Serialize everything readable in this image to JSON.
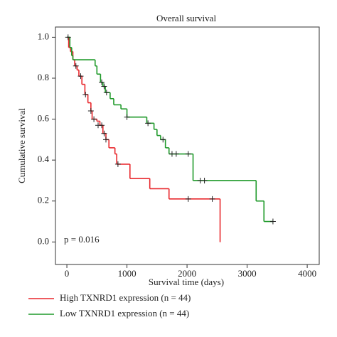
{
  "chart_data": {
    "type": "survival",
    "title": "Overall survival",
    "x_label": "Survival time (days)",
    "y_label": "Cumulative survival",
    "annotation": "p = 0.016",
    "xlim": [
      -190,
      4200
    ],
    "ylim": [
      -0.11,
      1.05
    ],
    "xticks": [
      0,
      1000,
      2000,
      3000,
      4000
    ],
    "yticks": [
      {
        "value": 0,
        "label": "0.0"
      },
      {
        "value": 0.2,
        "label": "0.2"
      },
      {
        "value": 0.4,
        "label": "0.4"
      },
      {
        "value": 0.6,
        "label": "0.6"
      },
      {
        "value": 0.8,
        "label": "0.8"
      },
      {
        "value": 1,
        "label": "1.0"
      }
    ],
    "series": [
      {
        "name": "High TXNRD1 expression (n = 44)",
        "color": "#e8262b",
        "x": [
          0,
          30,
          60,
          100,
          130,
          170,
          200,
          250,
          300,
          350,
          400,
          420,
          500,
          550,
          600,
          650,
          700,
          800,
          830,
          1050,
          1380,
          1700,
          2550
        ],
        "values": [
          1.0,
          0.95,
          0.93,
          0.89,
          0.86,
          0.84,
          0.81,
          0.77,
          0.72,
          0.68,
          0.64,
          0.6,
          0.59,
          0.57,
          0.53,
          0.5,
          0.46,
          0.43,
          0.38,
          0.31,
          0.26,
          0.21,
          0.0
        ],
        "censor_x": [
          150,
          230,
          310,
          400,
          450,
          520,
          580,
          620,
          650,
          850,
          2020,
          2420
        ],
        "censor_values": [
          0.86,
          0.81,
          0.72,
          0.64,
          0.6,
          0.57,
          0.57,
          0.53,
          0.5,
          0.38,
          0.21,
          0.21
        ]
      },
      {
        "name": "Low TXNRD1 expression (n = 44)",
        "color": "#1f9a2a",
        "x": [
          0,
          50,
          80,
          100,
          470,
          500,
          560,
          600,
          640,
          720,
          780,
          900,
          1000,
          1330,
          1450,
          1500,
          1560,
          1640,
          1700,
          2100,
          3150,
          3280
        ],
        "values": [
          1.0,
          0.95,
          0.91,
          0.89,
          0.86,
          0.82,
          0.78,
          0.76,
          0.73,
          0.7,
          0.67,
          0.65,
          0.61,
          0.58,
          0.55,
          0.52,
          0.5,
          0.46,
          0.43,
          0.3,
          0.2,
          0.1
        ],
        "censor_x": [
          20,
          580,
          620,
          660,
          1000,
          1350,
          1600,
          1750,
          1820,
          2020,
          2220,
          2290,
          3430
        ],
        "censor_values": [
          1.0,
          0.78,
          0.76,
          0.73,
          0.61,
          0.58,
          0.5,
          0.43,
          0.43,
          0.43,
          0.3,
          0.3,
          0.1
        ]
      }
    ]
  }
}
